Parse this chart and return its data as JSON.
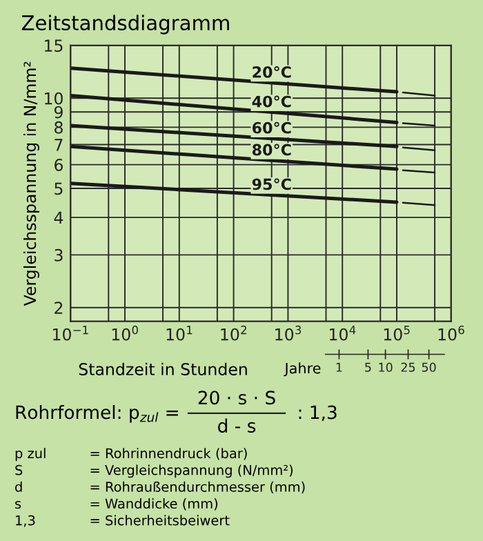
{
  "chart_data": {
    "type": "line",
    "title": "Zeitstandsdiagramm",
    "xlabel": "Standzeit in Stunden",
    "ylabel": "Vergleichsspannung in N/mm²",
    "log": "xy",
    "grid": true,
    "marker": "none",
    "line_style": "solid",
    "xlim": [
      0.1,
      1000000
    ],
    "ylim": [
      1.8,
      15
    ],
    "xticks": [
      {
        "value": 0.1,
        "label": "10$^{−1}$"
      },
      {
        "value": 0.5,
        "label": null
      },
      {
        "value": 1,
        "label": "10$^{0}$"
      },
      {
        "value": 5,
        "label": null
      },
      {
        "value": 10,
        "label": "10$^{1}$"
      },
      {
        "value": 50,
        "label": null
      },
      {
        "value": 100,
        "label": "10$^{2}$"
      },
      {
        "value": 500,
        "label": null
      },
      {
        "value": 1000,
        "label": "10$^{3}$"
      },
      {
        "value": 5000,
        "label": null
      },
      {
        "value": 10000,
        "label": "10$^{4}$"
      },
      {
        "value": 50000,
        "label": null
      },
      {
        "value": 100000,
        "label": "10$^{5}$"
      },
      {
        "value": 500000,
        "label": null
      },
      {
        "value": 1000000,
        "label": "10$^{6}$"
      }
    ],
    "yticks": [
      2,
      3,
      4,
      5,
      6,
      7,
      8,
      9,
      10,
      15
    ],
    "series": [
      {
        "name": "20°C",
        "color": "#1a1a1a",
        "x": [
          0.1,
          100000
        ],
        "values": [
          12.6,
          10.5
        ]
      },
      {
        "name": "40°C",
        "color": "#1a1a1a",
        "x": [
          0.1,
          100000
        ],
        "values": [
          10.2,
          8.3
        ]
      },
      {
        "name": "60°C",
        "color": "#1a1a1a",
        "x": [
          0.1,
          100000
        ],
        "values": [
          8.1,
          6.9
        ]
      },
      {
        "name": "80°C",
        "color": "#1a1a1a",
        "x": [
          0.1,
          100000
        ],
        "values": [
          6.9,
          5.8
        ]
      },
      {
        "name": "95°C",
        "color": "#1a1a1a",
        "x": [
          0.1,
          100000
        ],
        "values": [
          5.2,
          4.5
        ]
      },
      {
        "color": "#1a1a1a",
        "line_style": "solid",
        "x": [
          130000,
          500000
        ],
        "values": [
          10.45,
          10.2
        ]
      },
      {
        "color": "#1a1a1a",
        "line_style": "solid",
        "x": [
          130000,
          500000
        ],
        "values": [
          8.25,
          8.1
        ]
      },
      {
        "color": "#1a1a1a",
        "line_style": "solid",
        "x": [
          130000,
          500000
        ],
        "values": [
          6.85,
          6.7
        ]
      },
      {
        "color": "#1a1a1a",
        "line_style": "solid",
        "x": [
          130000,
          500000
        ],
        "values": [
          5.75,
          5.65
        ]
      },
      {
        "color": "#1a1a1a",
        "line_style": "solid",
        "x": [
          130000,
          500000
        ],
        "values": [
          4.48,
          4.4
        ]
      }
    ],
    "annotations": [
      "Jahre",
      "1",
      "5",
      "10",
      "25",
      "50",
      "Rohrformel: p$_{zul}$ =",
      "20 · s · S",
      "d - s",
      ": 1,3",
      "p zul",
      "= Rohrinnendruck (bar)",
      "S",
      "= Vergleichspannung (N/mm²)",
      "d",
      "= Rohraußendurchmesser (mm)",
      "s",
      "= Wanddicke (mm)",
      "1,3",
      "= Sicherheitsbeiwert"
    ]
  }
}
